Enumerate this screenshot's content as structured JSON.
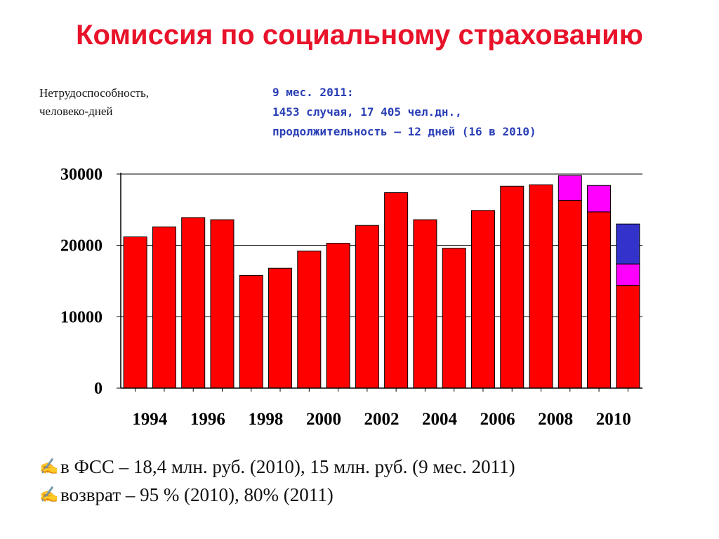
{
  "slide": {
    "title": "Комиссия по социальному страхованию",
    "ylabel_lines": [
      "Нетрудоспособность,",
      "человеко-дней"
    ],
    "note_lines": [
      "9 мес. 2011:",
      "1453 случая, 17 405 чел.дн.,",
      "продолжительность – 12 дней (16 в 2010)"
    ],
    "footer": [
      {
        "icon": "pointing-hand-icon",
        "text": " в ФСС – 18,4 млн. руб. (2010), 15 млн. руб. (9 мес. 2011)"
      },
      {
        "icon": "pointing-hand-icon",
        "text": "возврат – 95 % (2010), 80% (2011)"
      }
    ]
  },
  "chart_data": {
    "type": "bar",
    "stacked": true,
    "categories": [
      "1994",
      "1995",
      "1996",
      "1997",
      "1998",
      "1999",
      "2000",
      "2001",
      "2002",
      "2003",
      "2004",
      "2005",
      "2006",
      "2007",
      "2008",
      "2009",
      "2010",
      "2011"
    ],
    "x_tick_labels": [
      "1994",
      "1996",
      "1998",
      "2000",
      "2002",
      "2004",
      "2006",
      "2008",
      "2010"
    ],
    "y_tick_labels": [
      "0",
      "10000",
      "20000",
      "30000"
    ],
    "ylim": [
      0,
      30000
    ],
    "grid": true,
    "series": [
      {
        "color": "#ff0000",
        "values": [
          21200,
          22600,
          23900,
          23600,
          15800,
          16800,
          19200,
          20300,
          22800,
          27400,
          23600,
          19600,
          24900,
          28300,
          28500,
          26300,
          24700,
          14400
        ]
      },
      {
        "color": "#ff00ff",
        "values": [
          0,
          0,
          0,
          0,
          0,
          0,
          0,
          0,
          0,
          0,
          0,
          0,
          0,
          0,
          0,
          3500,
          3700,
          3000
        ]
      },
      {
        "color": "#3333cc",
        "values": [
          0,
          0,
          0,
          0,
          0,
          0,
          0,
          0,
          0,
          0,
          0,
          0,
          0,
          0,
          0,
          0,
          0,
          5600
        ]
      }
    ]
  }
}
